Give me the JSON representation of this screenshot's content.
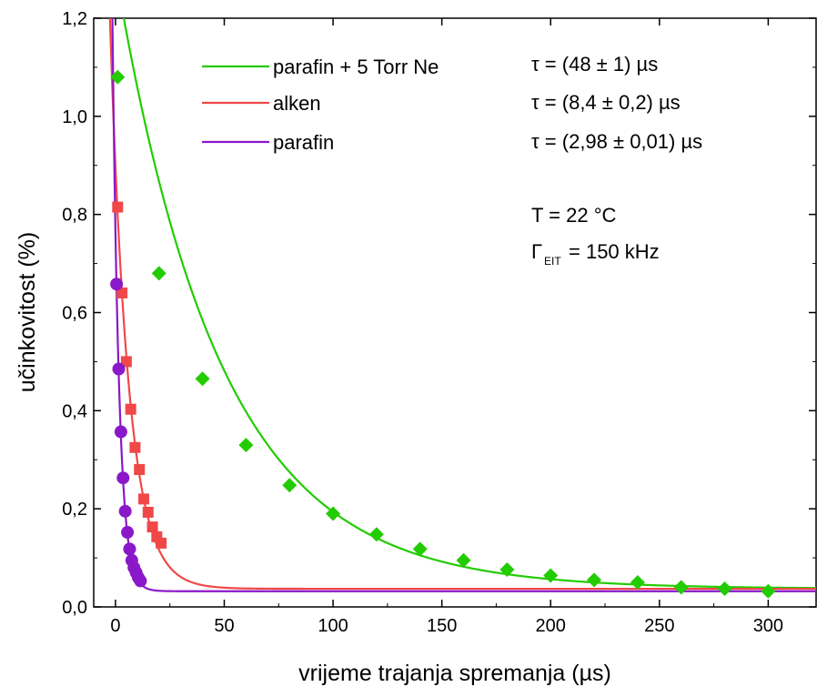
{
  "chart_data": {
    "type": "scatter",
    "xlabel": "vrijeme trajanja spremanja (µs)",
    "ylabel": "učinkovitost (%)",
    "xlim": [
      -10,
      322
    ],
    "ylim": [
      0,
      1.2
    ],
    "x_ticks": [
      0,
      50,
      100,
      150,
      200,
      250,
      300
    ],
    "x_tick_labels": [
      "0",
      "50",
      "100",
      "150",
      "200",
      "250",
      "300"
    ],
    "y_ticks": [
      0,
      0.2,
      0.4,
      0.6,
      0.8,
      1.0,
      1.2
    ],
    "y_tick_labels": [
      "0,0",
      "0,2",
      "0,4",
      "0,6",
      "0,8",
      "1,0",
      "1,2"
    ],
    "grid": false,
    "legend_position": "top-left",
    "series": [
      {
        "name": "parafin + 5 Torr Ne",
        "color": "#22cc00",
        "marker": "diamond",
        "x": [
          1,
          20,
          40,
          60,
          80,
          100,
          120,
          140,
          160,
          180,
          200,
          220,
          240,
          260,
          280,
          300
        ],
        "y": [
          1.08,
          0.68,
          0.465,
          0.33,
          0.248,
          0.19,
          0.148,
          0.118,
          0.095,
          0.076,
          0.064,
          0.055,
          0.05,
          0.04,
          0.037,
          0.032
        ],
        "fit": {
          "tau": 48,
          "amplitude": 1.26,
          "offset": 0.037
        }
      },
      {
        "name": "alken",
        "color": "#f04848",
        "marker": "square",
        "x": [
          1,
          3,
          5,
          7,
          9,
          11,
          13,
          15,
          17,
          19,
          21
        ],
        "y": [
          0.815,
          0.64,
          0.5,
          0.403,
          0.325,
          0.28,
          0.22,
          0.193,
          0.163,
          0.143,
          0.13
        ],
        "fit": {
          "tau": 8.4,
          "amplitude": 0.86,
          "offset": 0.037
        }
      },
      {
        "name": "parafin",
        "color": "#8a18c8",
        "marker": "circle",
        "x": [
          0.5,
          1.5,
          2.5,
          3.5,
          4.5,
          5.5,
          6.5,
          7.5,
          8.5,
          9.5,
          10.5,
          11.5
        ],
        "y": [
          0.658,
          0.485,
          0.357,
          0.263,
          0.195,
          0.152,
          0.118,
          0.095,
          0.08,
          0.07,
          0.06,
          0.053
        ],
        "fit": {
          "tau": 2.98,
          "amplitude": 0.73,
          "offset": 0.032
        }
      }
    ],
    "annotations": {
      "tau_green": "τ = (48 ± 1) µs",
      "tau_red": "τ = (8,4 ± 0,2) µs",
      "tau_purple": "τ = (2,98 ± 0,01) µs",
      "temperature": "T = 22 °C",
      "gamma_symbol": "Γ",
      "gamma_subscript": "EIT",
      "gamma_value": "= 150 kHz"
    }
  }
}
